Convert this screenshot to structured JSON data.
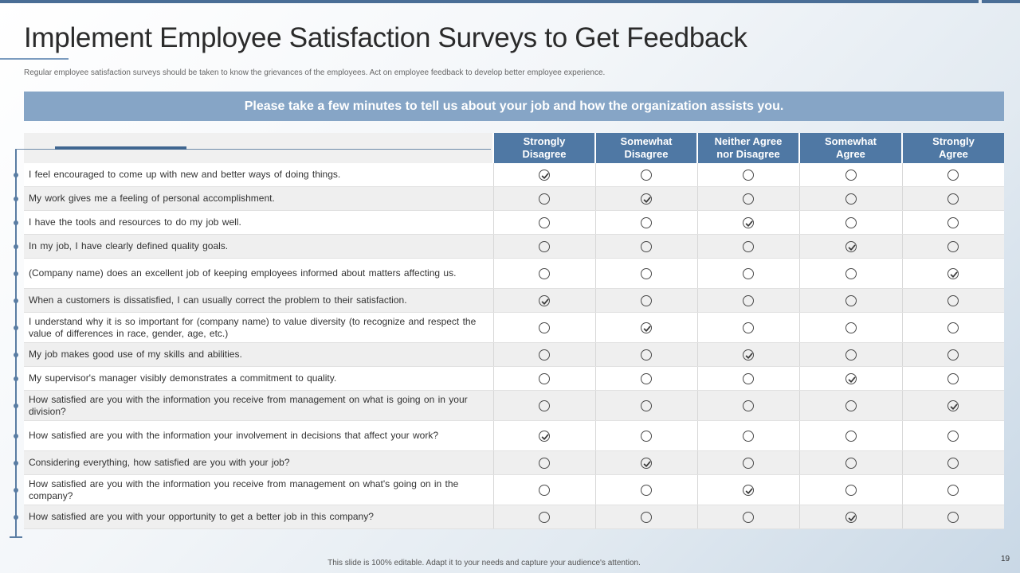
{
  "slide": {
    "title": "Implement Employee Satisfaction Surveys to Get Feedback",
    "subtitle": "Regular employee satisfaction surveys should be taken to know the grievances of the employees. Act on employee feedback to develop better employee experience.",
    "banner": "Please take a few minutes to tell us about your job and how the organization assists you.",
    "footer": "This slide is 100% editable. Adapt it to your needs and capture your audience's attention.",
    "page_number": "19"
  },
  "table": {
    "columns": [
      [
        "Strongly",
        "Disagree"
      ],
      [
        "Somewhat",
        "Disagree"
      ],
      [
        "Neither Agree",
        "nor Disagree"
      ],
      [
        "Somewhat",
        "Agree"
      ],
      [
        "Strongly",
        "Agree"
      ]
    ],
    "rows": [
      {
        "question": "I feel encouraged to come up with new and better ways of doing things.",
        "selected": 0
      },
      {
        "question": "My work gives me a feeling of personal accomplishment.",
        "selected": 1
      },
      {
        "question": "I have the tools and resources to do my job well.",
        "selected": 2
      },
      {
        "question": "In my job, I have clearly defined quality goals.",
        "selected": 3
      },
      {
        "question": "(Company name) does an excellent job of keeping employees informed about matters affecting us.",
        "selected": 4
      },
      {
        "question": "When a customers is dissatisfied, I can usually correct the problem to their satisfaction.",
        "selected": 0
      },
      {
        "question": "I understand why it is so important for (company name) to value diversity (to recognize and respect the value of differences in race, gender, age, etc.)",
        "selected": 1
      },
      {
        "question": "My job makes good use of my skills and abilities.",
        "selected": 2
      },
      {
        "question": "My supervisor's manager visibly demonstrates a commitment to quality.",
        "selected": 3
      },
      {
        "question": "How satisfied are you with the information you receive from management on what is going on in your division?",
        "selected": 4
      },
      {
        "question": "How satisfied are you with the information your involvement in decisions that affect your work?",
        "selected": 0
      },
      {
        "question": "Considering everything, how satisfied are you with your job?",
        "selected": 1
      },
      {
        "question": "How satisfied are you with the information you receive from management on what's going on in the company?",
        "selected": 2
      },
      {
        "question": "How satisfied are you with your opportunity to get a better job in this company?",
        "selected": 3
      }
    ]
  },
  "colors": {
    "header": "#4f78a4",
    "banner": "#86a5c6",
    "timeline": "#5a7da3",
    "check": "#3b3b3b"
  }
}
